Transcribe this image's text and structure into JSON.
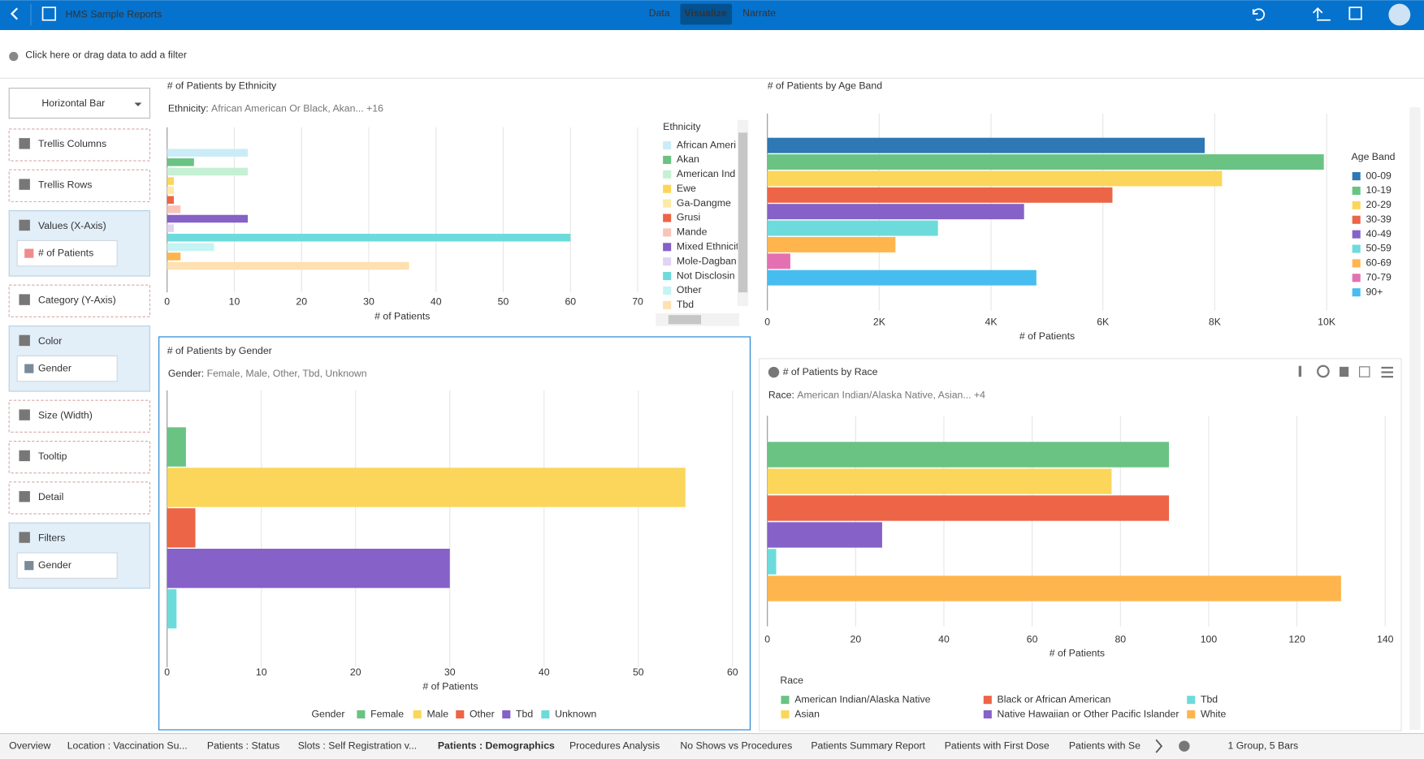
{
  "header": {
    "title": "HMS Sample Reports",
    "tabs": [
      "Data",
      "Visualize",
      "Narrate"
    ],
    "active_index": 1
  },
  "filter_bar": {
    "prompt": "Click here or drag data to add a filter"
  },
  "grammar_panel": {
    "chart_type": "Horizontal Bar",
    "sections": [
      {
        "label": "Trellis Columns"
      },
      {
        "label": "Trellis Rows"
      },
      {
        "label": "Values (X-Axis)",
        "items": [
          "# of Patients"
        ]
      },
      {
        "label": "Category (Y-Axis)"
      },
      {
        "label": "Color",
        "items": [
          "Gender"
        ]
      },
      {
        "label": "Size (Width)"
      },
      {
        "label": "Tooltip"
      },
      {
        "label": "Detail"
      },
      {
        "label": "Filters",
        "items": [
          "Gender"
        ]
      }
    ]
  },
  "chart_data": [
    {
      "type": "bar",
      "orientation": "horizontal",
      "title": "# of Patients by Ethnicity",
      "filter_label": "Ethnicity:",
      "filter_value": "African American Or Black, Akan... +16",
      "x_label": "# of Patients",
      "legend_title": "Ethnicity",
      "legend_position": "right",
      "categories": [
        "African Ameri",
        "Akan",
        "American Ind",
        "Ewe",
        "Ga-Dangme",
        "Grusi",
        "Mande",
        "Mixed Ethnicit",
        "Mole-Dagban",
        "Not Disclosin",
        "Other",
        null,
        "Tbd"
      ],
      "values": [
        12,
        4,
        12,
        1,
        1,
        1,
        2,
        12,
        1,
        60,
        7,
        2,
        36
      ],
      "colors": [
        "#c9ecf7",
        "#6ac383",
        "#c6f0d3",
        "#fbd65a",
        "#fde9a8",
        "#ec6547",
        "#f9c4b8",
        "#8561c8",
        "#e0d3f4",
        "#6ddbdb",
        "#c4f4f4",
        "#ffb54d",
        "#ffe0b0"
      ],
      "xlim": [
        0,
        72
      ],
      "xticks": [
        0,
        10,
        20,
        30,
        40,
        50,
        60,
        70
      ],
      "grid": true
    },
    {
      "type": "bar",
      "orientation": "horizontal",
      "title": "# of Patients by Age Band",
      "x_label": "# of Patients",
      "legend_title": "Age Band",
      "legend_position": "right",
      "categories": [
        "00-09",
        "10-19",
        "20-29",
        "30-39",
        "40-49",
        "50-59",
        "60-69",
        "70-79",
        "90+"
      ],
      "values": [
        7820,
        9950,
        8130,
        6170,
        4590,
        3050,
        2290,
        410,
        4810
      ],
      "colors": [
        "#2d78b5",
        "#6ac383",
        "#fbd65a",
        "#ec6547",
        "#8561c8",
        "#6ddbdb",
        "#ffb54d",
        "#e371b2",
        "#47bdef"
      ],
      "xlim": [
        0,
        10150
      ],
      "xticks": [
        0,
        {
          "value": 2000,
          "label": "2K"
        },
        {
          "value": 4000,
          "label": "4K"
        },
        {
          "value": 6000,
          "label": "6K"
        },
        {
          "value": 8000,
          "label": "8K"
        },
        {
          "value": 10000,
          "label": "10K"
        }
      ],
      "grid": true
    },
    {
      "type": "bar",
      "orientation": "horizontal",
      "title": "# of Patients by Gender",
      "filter_label": "Gender:",
      "filter_value": "Female, Male, Other, Tbd, Unknown",
      "x_label": "# of Patients",
      "legend_title": "Gender",
      "legend_position": "bottom",
      "categories": [
        "Female",
        "Male",
        "Other",
        "Tbd",
        "Unknown"
      ],
      "values": [
        2,
        55,
        3,
        30,
        1
      ],
      "colors": [
        "#6ac383",
        "#fbd65a",
        "#ec6547",
        "#8561c8",
        "#6ddbdb"
      ],
      "xlim": [
        0,
        61
      ],
      "xticks": [
        0,
        10,
        20,
        30,
        40,
        50,
        60
      ],
      "grid": true
    },
    {
      "type": "bar",
      "orientation": "horizontal",
      "title": "# of Patients by Race",
      "filter_label": "Race:",
      "filter_value": "American Indian/Alaska Native, Asian... +4",
      "x_label": "# of Patients",
      "legend_title": "Race",
      "legend_position": "bottom",
      "categories": [
        "American Indian/Alaska Native",
        "Asian",
        "Black or African American",
        "Native Hawaiian or Other Pacific Islander",
        "Tbd",
        "White"
      ],
      "values": [
        91,
        78,
        91,
        26,
        2,
        130
      ],
      "colors": [
        "#6ac383",
        "#fbd65a",
        "#ec6547",
        "#8561c8",
        "#6ddbdb",
        "#ffb54d"
      ],
      "xlim": [
        0,
        142
      ],
      "xticks": [
        0,
        20,
        40,
        60,
        80,
        100,
        120,
        140
      ],
      "grid": true
    }
  ],
  "footer": {
    "tabs": [
      "Overview",
      "Location : Vaccination Su...",
      "Patients : Status",
      "Slots : Self Registration v...",
      "Patients : Demographics",
      "Procedures Analysis",
      "No Shows vs Procedures",
      "Patients Summary Report",
      "Patients with First Dose",
      "Patients with Se"
    ],
    "active_index": 4,
    "status": "1 Group, 5 Bars"
  }
}
